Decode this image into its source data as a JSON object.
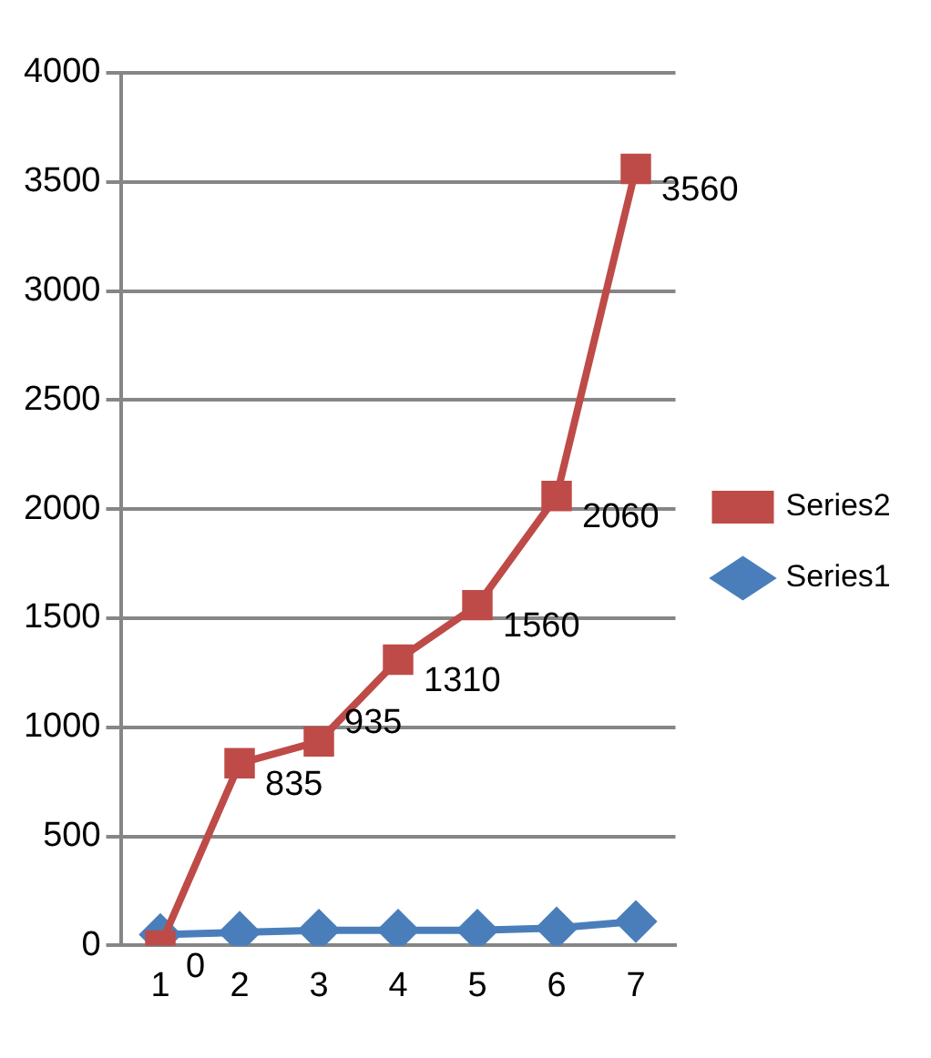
{
  "chart_data": {
    "type": "line",
    "categories": [
      "1",
      "2",
      "3",
      "4",
      "5",
      "6",
      "7"
    ],
    "series": [
      {
        "name": "Series1",
        "color": "#4a7ebb",
        "marker": "diamond",
        "values": [
          50,
          60,
          70,
          70,
          70,
          80,
          110
        ]
      },
      {
        "name": "Series2",
        "color": "#be4b48",
        "marker": "square",
        "values": [
          0,
          835,
          935,
          1310,
          1560,
          2060,
          3560
        ],
        "value_labels": [
          "0",
          "835",
          "935",
          "1310",
          "1560",
          "2060",
          "3560"
        ]
      }
    ],
    "ylim": [
      0,
      4000
    ],
    "yticks": [
      0,
      500,
      1000,
      1500,
      2000,
      2500,
      3000,
      3500,
      4000
    ],
    "grid": "y",
    "legend": "right"
  }
}
